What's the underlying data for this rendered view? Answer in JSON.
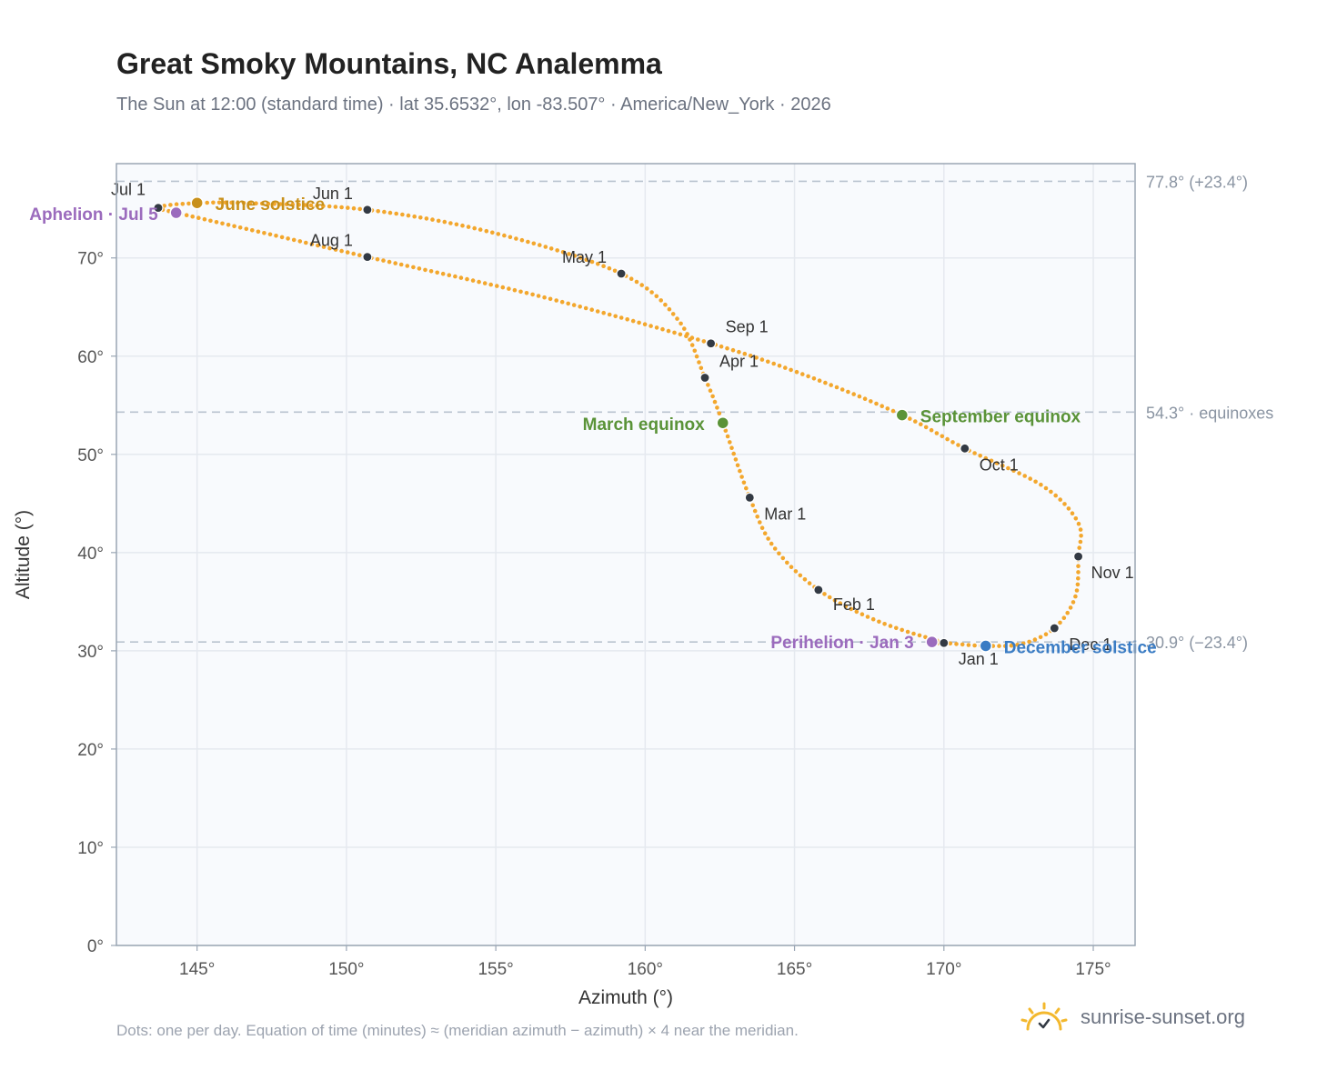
{
  "header": {
    "title": "Great Smoky Mountains, NC Analemma",
    "subtitle": "The Sun at 12:00 (standard time) · lat 35.6532°, lon -83.507° · America/New_York · 2026"
  },
  "footer": {
    "note": "Dots: one per day. Equation of time (minutes) ≈ (meridian azimuth − azimuth) × 4 near the meridian.",
    "brand": "sunrise-sunset.org"
  },
  "colors": {
    "curve": "#f3a72d",
    "month_marker": "#333a44",
    "aphelion": "#9b6bbd",
    "perihelion": "#9b6bbd",
    "june_solstice": "#c8901a",
    "december_solstice": "#3a7cc4",
    "equinox": "#5a9338",
    "reference_line": "#b9c3cf",
    "grid": "#e5e9ef",
    "plot_background": "#f8fafd",
    "brand_sun": "#f3b82d"
  },
  "chart_data": {
    "type": "scatter",
    "title": "Great Smoky Mountains, NC Analemma",
    "xlabel": "Azimuth (°)",
    "ylabel": "Altitude (°)",
    "xlim": [
      142.3,
      176.4
    ],
    "ylim": [
      0,
      79.6
    ],
    "xticks": [
      145,
      150,
      155,
      160,
      165,
      170,
      175
    ],
    "xtick_labels": [
      "145°",
      "150°",
      "155°",
      "160°",
      "165°",
      "170°",
      "175°"
    ],
    "yticks": [
      0,
      10,
      20,
      30,
      40,
      50,
      60,
      70
    ],
    "ytick_labels": [
      "0°",
      "10°",
      "20°",
      "30°",
      "40°",
      "50°",
      "60°",
      "70°"
    ],
    "grid": true,
    "reference_lines": [
      {
        "y": 77.8,
        "label": "77.8° (+23.4°)"
      },
      {
        "y": 54.3,
        "label": "54.3° · equinoxes"
      },
      {
        "y": 30.9,
        "label": "30.9° (−23.4°)"
      }
    ],
    "month_markers": [
      {
        "label": "Jan 1",
        "x": 170.0,
        "y": 30.8
      },
      {
        "label": "Feb 1",
        "x": 165.8,
        "y": 36.2
      },
      {
        "label": "Mar 1",
        "x": 163.5,
        "y": 45.6
      },
      {
        "label": "Apr 1",
        "x": 162.0,
        "y": 57.8
      },
      {
        "label": "May 1",
        "x": 159.2,
        "y": 68.4
      },
      {
        "label": "Jun 1",
        "x": 150.7,
        "y": 74.9
      },
      {
        "label": "Jul 1",
        "x": 143.7,
        "y": 75.1
      },
      {
        "label": "Aug 1",
        "x": 150.7,
        "y": 70.1
      },
      {
        "label": "Sep 1",
        "x": 162.2,
        "y": 61.3
      },
      {
        "label": "Oct 1",
        "x": 170.7,
        "y": 50.6
      },
      {
        "label": "Nov 1",
        "x": 174.5,
        "y": 39.6
      },
      {
        "label": "Dec 1",
        "x": 173.7,
        "y": 32.3
      }
    ],
    "events": [
      {
        "key": "perihelion",
        "label": "Perihelion · Jan 3",
        "x": 169.6,
        "y": 30.9
      },
      {
        "key": "march_equinox",
        "label": "March equinox",
        "x": 162.6,
        "y": 53.2
      },
      {
        "key": "june_solstice",
        "label": "June solstice",
        "x": 145.0,
        "y": 75.6
      },
      {
        "key": "aphelion",
        "label": "Aphelion · Jul 5",
        "x": 144.3,
        "y": 74.6
      },
      {
        "key": "september_equinox",
        "label": "September equinox",
        "x": 168.6,
        "y": 54.0
      },
      {
        "key": "december_solstice",
        "label": "December solstice",
        "x": 171.4,
        "y": 30.5
      }
    ],
    "curve_knots": [
      [
        169.6,
        30.9
      ],
      [
        170.0,
        30.8
      ],
      [
        167.8,
        33.0
      ],
      [
        165.8,
        36.2
      ],
      [
        164.3,
        40.6
      ],
      [
        163.5,
        45.6
      ],
      [
        162.6,
        53.2
      ],
      [
        162.0,
        57.8
      ],
      [
        161.1,
        63.7
      ],
      [
        159.2,
        68.4
      ],
      [
        155.0,
        72.5
      ],
      [
        150.7,
        74.9
      ],
      [
        146.5,
        75.6
      ],
      [
        144.5,
        75.5
      ],
      [
        143.7,
        75.1
      ],
      [
        144.3,
        74.6
      ],
      [
        147.3,
        72.5
      ],
      [
        150.7,
        70.1
      ],
      [
        156.6,
        66.0
      ],
      [
        162.2,
        61.3
      ],
      [
        165.5,
        57.9
      ],
      [
        168.6,
        54.0
      ],
      [
        170.7,
        50.6
      ],
      [
        173.3,
        46.8
      ],
      [
        174.5,
        43.0
      ],
      [
        174.5,
        39.6
      ],
      [
        174.4,
        35.5
      ],
      [
        173.7,
        32.3
      ],
      [
        172.6,
        30.7
      ],
      [
        171.4,
        30.5
      ],
      [
        170.4,
        30.7
      ],
      [
        169.6,
        30.9
      ]
    ]
  }
}
